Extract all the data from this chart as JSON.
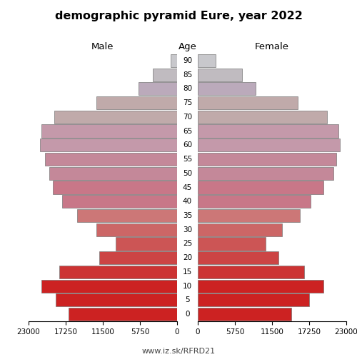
{
  "title": "demographic pyramid Eure, year 2022",
  "label_male": "Male",
  "label_female": "Female",
  "label_age": "Age",
  "footer": "www.iz.sk/RFRD21",
  "age_labels": [
    "0",
    "5",
    "10",
    "15",
    "20",
    "25",
    "30",
    "35",
    "40",
    "45",
    "50",
    "55",
    "60",
    "65",
    "70",
    "75",
    "80",
    "85",
    "90"
  ],
  "male": [
    16800,
    18800,
    21000,
    18200,
    12000,
    9500,
    12500,
    15500,
    17800,
    19200,
    19800,
    20500,
    21200,
    21000,
    19000,
    12500,
    6000,
    3800,
    1000
  ],
  "female": [
    14500,
    17200,
    19500,
    16500,
    12500,
    10500,
    13000,
    15800,
    17500,
    19500,
    21000,
    21500,
    22000,
    21800,
    20000,
    15500,
    9000,
    6800,
    2800
  ],
  "xlim": 23000,
  "xticks": [
    0,
    5750,
    11500,
    17250,
    23000
  ],
  "age_colors": [
    "#cc2222",
    "#cc2222",
    "#cc2222",
    "#cc3333",
    "#cc4444",
    "#cc5555",
    "#cc6666",
    "#cc7777",
    "#c87788",
    "#c87788",
    "#c48899",
    "#c48899",
    "#c499aa",
    "#c499aa",
    "#c0aaaa",
    "#c0aaaa",
    "#bbaabb",
    "#c0bbc0",
    "#c8c8cc"
  ],
  "bar_height": 0.92,
  "bg_color": "#ffffff",
  "edge_color": "#777777",
  "edge_lw": 0.5
}
